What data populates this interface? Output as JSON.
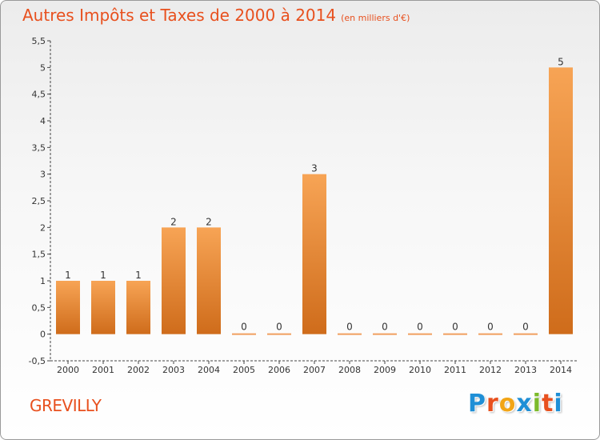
{
  "header": {
    "title": "Autres Impôts et Taxes de 2000 à 2014",
    "subtitle": "(en milliers d'€)"
  },
  "footer": {
    "commune": "GREVILLY",
    "logo_text": "Proxiti",
    "logo_letters": [
      {
        "char": "P",
        "color": "#1f8fd6"
      },
      {
        "char": "r",
        "color": "#e8501e"
      },
      {
        "char": "o",
        "color": "#f2a516"
      },
      {
        "char": "x",
        "color": "#1f8fd6"
      },
      {
        "char": "i",
        "color": "#7cba2a"
      },
      {
        "char": "t",
        "color": "#e8501e"
      },
      {
        "char": "i",
        "color": "#1f8fd6"
      }
    ]
  },
  "chart_data": {
    "type": "bar",
    "title": "Autres Impôts et Taxes de 2000 à 2014",
    "subtitle": "(en milliers d'€)",
    "categories": [
      "2000",
      "2001",
      "2002",
      "2003",
      "2004",
      "2005",
      "2006",
      "2007",
      "2008",
      "2009",
      "2010",
      "2011",
      "2012",
      "2013",
      "2014"
    ],
    "values": [
      1,
      1,
      1,
      2,
      2,
      0,
      0,
      3,
      0,
      0,
      0,
      0,
      0,
      0,
      5
    ],
    "data_labels": [
      "1",
      "1",
      "1",
      "2",
      "2",
      "0",
      "0",
      "3",
      "0",
      "0",
      "0",
      "0",
      "0",
      "0",
      "5"
    ],
    "xlabel": "",
    "ylabel": "",
    "ylim": [
      -0.5,
      5.5
    ],
    "yticks": [
      "-0,5",
      "0",
      "0,5",
      "1",
      "1,5",
      "2",
      "2,5",
      "3",
      "3,5",
      "4",
      "4,5",
      "5",
      "5,5"
    ],
    "ytick_values": [
      -0.5,
      0,
      0.5,
      1,
      1.5,
      2,
      2.5,
      3,
      3.5,
      4,
      4.5,
      5,
      5.5
    ],
    "grid": false,
    "legend": "none",
    "bar_color_top": "#f7a455",
    "bar_color_bottom": "#cf6c1b",
    "zero_bar_color": "#f0a060"
  }
}
